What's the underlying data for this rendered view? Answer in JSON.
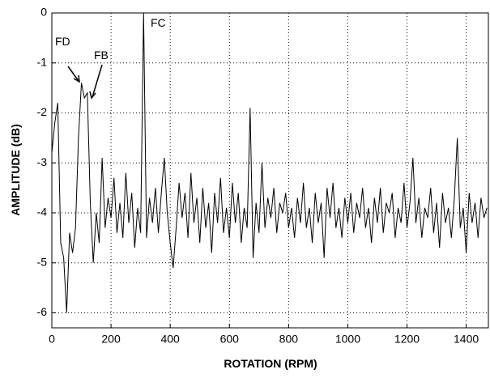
{
  "chart_data": {
    "type": "line",
    "x_label": "ROTATION (RPM)",
    "y_label": "AMPLITUDE (dB)",
    "xlim": [
      0,
      1475
    ],
    "ylim": [
      -6.3,
      0
    ],
    "xticks": [
      0,
      200,
      400,
      600,
      800,
      1000,
      1200,
      1400
    ],
    "yticks": [
      -6,
      -5,
      -4,
      -3,
      -2,
      -1,
      0
    ],
    "grid": true,
    "annotations": [
      "FD",
      "FB",
      "FC"
    ],
    "series": [
      {
        "color": "#000000",
        "x": [
          0,
          10,
          20,
          30,
          40,
          50,
          60,
          70,
          80,
          90,
          100,
          110,
          120,
          130,
          140,
          150,
          160,
          170,
          180,
          190,
          200,
          210,
          220,
          230,
          240,
          250,
          260,
          270,
          280,
          290,
          300,
          310,
          320,
          330,
          340,
          350,
          360,
          370,
          380,
          390,
          400,
          410,
          420,
          430,
          440,
          450,
          460,
          470,
          480,
          490,
          500,
          510,
          520,
          530,
          540,
          550,
          560,
          570,
          580,
          590,
          600,
          610,
          620,
          630,
          640,
          650,
          660,
          670,
          680,
          690,
          700,
          710,
          720,
          730,
          740,
          750,
          760,
          770,
          780,
          790,
          800,
          810,
          820,
          830,
          840,
          850,
          860,
          870,
          880,
          890,
          900,
          910,
          920,
          930,
          940,
          950,
          960,
          970,
          980,
          990,
          1000,
          1010,
          1020,
          1030,
          1040,
          1050,
          1060,
          1070,
          1080,
          1090,
          1100,
          1110,
          1120,
          1130,
          1140,
          1150,
          1160,
          1170,
          1180,
          1190,
          1200,
          1210,
          1220,
          1230,
          1240,
          1250,
          1260,
          1270,
          1280,
          1290,
          1300,
          1310,
          1320,
          1330,
          1340,
          1350,
          1360,
          1370,
          1380,
          1390,
          1400,
          1410,
          1420,
          1430,
          1440,
          1450,
          1460,
          1470
        ],
        "values": [
          -2.8,
          -2.2,
          -1.8,
          -4.6,
          -4.9,
          -6.0,
          -4.4,
          -4.8,
          -4.3,
          -2.5,
          -1.4,
          -1.7,
          -1.6,
          -3.8,
          -5.0,
          -4.0,
          -4.6,
          -2.9,
          -4.3,
          -3.7,
          -4.1,
          -3.3,
          -4.4,
          -3.8,
          -4.5,
          -3.2,
          -4.2,
          -3.6,
          -4.7,
          -3.9,
          -4.4,
          0,
          -4.5,
          -3.7,
          -4.2,
          -3.5,
          -4.4,
          -3.6,
          -2.9,
          -4.0,
          -4.6,
          -5.1,
          -4.3,
          -3.4,
          -4.1,
          -3.6,
          -4.5,
          -3.2,
          -4.2,
          -3.7,
          -4.6,
          -3.5,
          -4.3,
          -3.8,
          -4.8,
          -3.6,
          -4.2,
          -3.3,
          -4.4,
          -3.9,
          -4.5,
          -3.4,
          -4.2,
          -3.6,
          -4.6,
          -3.9,
          -4.3,
          -1.9,
          -4.9,
          -3.8,
          -4.4,
          -3.0,
          -4.3,
          -3.7,
          -4.1,
          -3.5,
          -4.4,
          -3.8,
          -4.0,
          -3.6,
          -4.3,
          -3.9,
          -4.5,
          -3.7,
          -4.2,
          -3.4,
          -4.3,
          -3.9,
          -4.6,
          -3.6,
          -4.2,
          -3.8,
          -4.9,
          -3.5,
          -4.1,
          -3.4,
          -4.3,
          -3.9,
          -4.5,
          -3.7,
          -4.2,
          -3.6,
          -4.4,
          -3.8,
          -4.1,
          -3.5,
          -4.3,
          -3.9,
          -4.6,
          -3.7,
          -4.2,
          -3.5,
          -4.4,
          -3.8,
          -4.0,
          -3.6,
          -4.5,
          -3.9,
          -4.2,
          -3.4,
          -4.3,
          -3.8,
          -2.9,
          -4.2,
          -3.7,
          -4.5,
          -3.9,
          -4.1,
          -3.5,
          -4.4,
          -3.8,
          -4.7,
          -3.6,
          -4.2,
          -3.9,
          -4.5,
          -3.7,
          -2.5,
          -4.3,
          -3.9,
          -4.8,
          -3.6,
          -4.2,
          -3.8,
          -4.5,
          -3.7,
          -4.1,
          -3.9
        ]
      }
    ]
  }
}
